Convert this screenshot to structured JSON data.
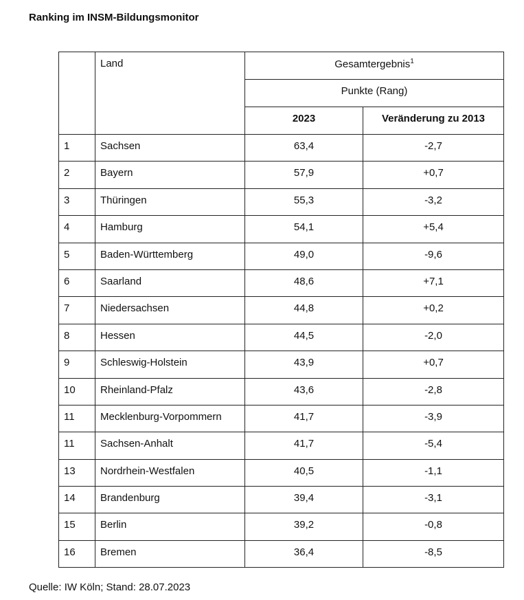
{
  "header": {
    "title": "Ranking im INSM-Bildungsmonitor"
  },
  "table": {
    "columns": {
      "land": "Land",
      "group": "Gesamtergebnis",
      "group_note": "1",
      "subgroup": "Punkte (Rang)",
      "year": "2023",
      "change": "Veränderung zu 2013"
    },
    "rows": [
      [
        "1",
        "Sachsen",
        "63,4",
        "-2,7"
      ],
      [
        "2",
        "Bayern",
        "57,9",
        "+0,7"
      ],
      [
        "3",
        "Thüringen",
        "55,3",
        "-3,2"
      ],
      [
        "4",
        "Hamburg",
        "54,1",
        "+5,4"
      ],
      [
        "5",
        "Baden-Württemberg",
        "49,0",
        "-9,6"
      ],
      [
        "6",
        "Saarland",
        "48,6",
        "+7,1"
      ],
      [
        "7",
        "Niedersachsen",
        "44,8",
        "+0,2"
      ],
      [
        "8",
        "Hessen",
        "44,5",
        "-2,0"
      ],
      [
        "9",
        "Schleswig-Holstein",
        "43,9",
        "+0,7"
      ],
      [
        "10",
        "Rheinland-Pfalz",
        "43,6",
        "-2,8"
      ],
      [
        "11",
        "Mecklenburg-Vorpommern",
        "41,7",
        "-3,9"
      ],
      [
        "11",
        "Sachsen-Anhalt",
        "41,7",
        "-5,4"
      ],
      [
        "13",
        "Nordrhein-Westfalen",
        "40,5",
        "-1,1"
      ],
      [
        "14",
        "Brandenburg",
        "39,4",
        "-3,1"
      ],
      [
        "15",
        "Berlin",
        "39,2",
        "-0,8"
      ],
      [
        "16",
        "Bremen",
        "36,4",
        "-8,5"
      ]
    ]
  },
  "footer": {
    "source": "Quelle: IW Köln; Stand: 28.07.2023"
  }
}
